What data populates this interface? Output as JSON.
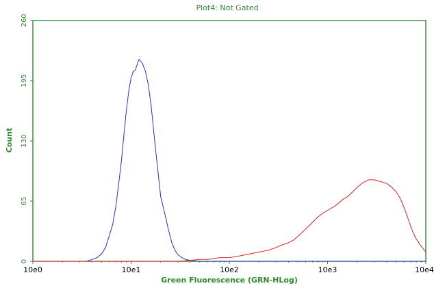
{
  "chart_data": {
    "type": "line",
    "title": "Plot4: Not Gated",
    "xlabel": "Green Fluorescence (GRN-HLog)",
    "ylabel": "Count",
    "x_scale": "log",
    "xlim": [
      1,
      10000
    ],
    "ylim": [
      0,
      260
    ],
    "x_ticks": [
      {
        "value": 1,
        "label": "10e0"
      },
      {
        "value": 10,
        "label": "10e1"
      },
      {
        "value": 100,
        "label": "10e2"
      },
      {
        "value": 1000,
        "label": "10e3"
      },
      {
        "value": 10000,
        "label": "10e4"
      }
    ],
    "y_ticks": [
      {
        "value": 0,
        "label": "0"
      },
      {
        "value": 65,
        "label": "65"
      },
      {
        "value": 130,
        "label": "130"
      },
      {
        "value": 195,
        "label": "195"
      },
      {
        "value": 260,
        "label": "260"
      }
    ],
    "grid": false,
    "series": [
      {
        "color": "#2233cc",
        "points": [
          [
            1,
            0
          ],
          [
            2,
            0
          ],
          [
            3,
            0
          ],
          [
            3.5,
            0
          ],
          [
            4,
            2
          ],
          [
            4.5,
            4
          ],
          [
            5,
            8
          ],
          [
            5.5,
            15
          ],
          [
            6,
            28
          ],
          [
            6.5,
            40
          ],
          [
            7,
            60
          ],
          [
            7.5,
            85
          ],
          [
            8,
            110
          ],
          [
            8.5,
            140
          ],
          [
            9,
            165
          ],
          [
            9.5,
            185
          ],
          [
            10,
            198
          ],
          [
            10.5,
            205
          ],
          [
            11,
            206
          ],
          [
            11.5,
            212
          ],
          [
            12,
            218
          ],
          [
            13,
            214
          ],
          [
            14,
            205
          ],
          [
            15,
            190
          ],
          [
            16,
            168
          ],
          [
            17,
            140
          ],
          [
            18,
            115
          ],
          [
            19,
            92
          ],
          [
            20,
            70
          ],
          [
            22,
            52
          ],
          [
            24,
            34
          ],
          [
            26,
            20
          ],
          [
            28,
            12
          ],
          [
            30,
            7
          ],
          [
            33,
            4
          ],
          [
            36,
            2
          ],
          [
            40,
            1
          ],
          [
            50,
            0
          ],
          [
            70,
            0
          ],
          [
            100,
            0
          ],
          [
            150,
            0
          ],
          [
            300,
            0
          ],
          [
            1000,
            0
          ],
          [
            10000,
            0
          ]
        ]
      },
      {
        "color": "#dd2222",
        "points": [
          [
            1,
            0
          ],
          [
            10,
            0
          ],
          [
            20,
            0
          ],
          [
            30,
            0
          ],
          [
            40,
            1
          ],
          [
            50,
            2
          ],
          [
            60,
            2
          ],
          [
            70,
            3
          ],
          [
            80,
            4
          ],
          [
            100,
            4
          ],
          [
            130,
            6
          ],
          [
            160,
            8
          ],
          [
            200,
            10
          ],
          [
            250,
            12
          ],
          [
            300,
            15
          ],
          [
            350,
            18
          ],
          [
            400,
            20
          ],
          [
            450,
            23
          ],
          [
            500,
            27
          ],
          [
            600,
            35
          ],
          [
            700,
            42
          ],
          [
            800,
            48
          ],
          [
            900,
            52
          ],
          [
            1000,
            55
          ],
          [
            1200,
            60
          ],
          [
            1400,
            66
          ],
          [
            1600,
            70
          ],
          [
            1800,
            75
          ],
          [
            2000,
            80
          ],
          [
            2300,
            85
          ],
          [
            2600,
            88
          ],
          [
            3000,
            88
          ],
          [
            3500,
            86
          ],
          [
            4000,
            84
          ],
          [
            4500,
            80
          ],
          [
            5000,
            75
          ],
          [
            5500,
            68
          ],
          [
            6000,
            58
          ],
          [
            6500,
            48
          ],
          [
            7000,
            38
          ],
          [
            7500,
            30
          ],
          [
            8000,
            24
          ],
          [
            8500,
            20
          ],
          [
            9000,
            16
          ],
          [
            9500,
            13
          ],
          [
            10000,
            10
          ]
        ]
      }
    ]
  }
}
